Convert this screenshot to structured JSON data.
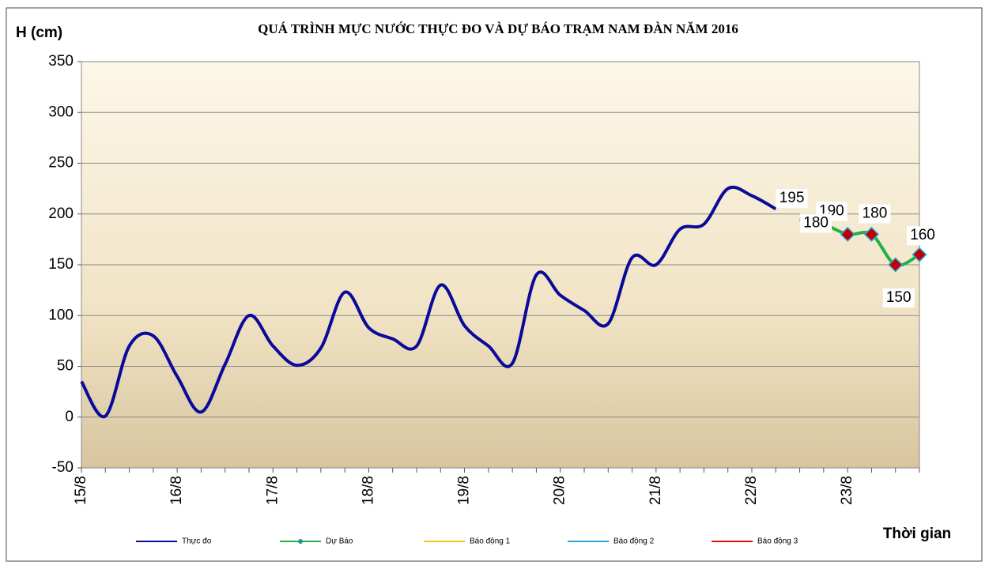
{
  "chart_data": {
    "type": "line",
    "title": "QUÁ TRÌNH MỰC NƯỚC THỰC ĐO VÀ DỰ BÁO TRẠM  NAM ĐÀN NĂM 2016",
    "y_label": "H (cm)",
    "x_label": "Thời gian",
    "categories": [
      "15/8",
      null,
      null,
      null,
      "16/8",
      null,
      null,
      null,
      "17/8",
      null,
      null,
      null,
      "18/8",
      null,
      null,
      null,
      "19/8",
      null,
      null,
      null,
      "20/8",
      null,
      null,
      null,
      "21/8",
      null,
      null,
      null,
      "22/8",
      null,
      null,
      null,
      "23/8",
      null,
      null,
      null
    ],
    "series": [
      {
        "name": "Thực đo",
        "color": "#0a0a9a",
        "values": [
          35,
          1,
          70,
          80,
          40,
          5,
          52,
          100,
          70,
          51,
          68,
          123,
          88,
          77,
          70,
          130,
          90,
          70,
          53,
          140,
          120,
          105,
          92,
          157,
          150,
          185,
          190,
          225,
          218,
          205,
          null,
          null,
          null,
          null,
          null,
          null
        ]
      },
      {
        "name": "Dự Báo",
        "color": "#22b04a",
        "values": [
          null,
          null,
          null,
          null,
          null,
          null,
          null,
          null,
          null,
          null,
          null,
          null,
          null,
          null,
          null,
          null,
          null,
          null,
          null,
          null,
          null,
          null,
          null,
          null,
          null,
          null,
          null,
          null,
          null,
          null,
          195,
          190,
          180,
          180,
          150,
          160
        ]
      }
    ],
    "legend_only": [
      {
        "name": "Báo động 1",
        "color": "#f5c518"
      },
      {
        "name": "Báo động 2",
        "color": "#29a8e0"
      },
      {
        "name": "Báo động 3",
        "color": "#e01010"
      }
    ],
    "ylim": [
      -50,
      350
    ],
    "yticks": [
      -50,
      0,
      50,
      100,
      150,
      200,
      250,
      300,
      350
    ],
    "grid": true
  }
}
